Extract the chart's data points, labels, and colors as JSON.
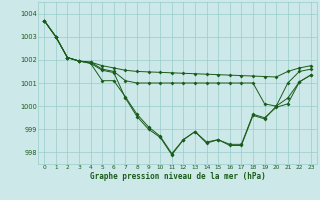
{
  "xlabel": "Graphe pression niveau de la mer (hPa)",
  "ylim": [
    997.5,
    1004.5
  ],
  "xlim": [
    -0.5,
    23.5
  ],
  "yticks": [
    998,
    999,
    1000,
    1001,
    1002,
    1003,
    1004
  ],
  "xticks": [
    0,
    1,
    2,
    3,
    4,
    5,
    6,
    7,
    8,
    9,
    10,
    11,
    12,
    13,
    14,
    15,
    16,
    17,
    18,
    19,
    20,
    21,
    22,
    23
  ],
  "background_color": "#cce8e8",
  "grid_color": "#99cccc",
  "line_color": "#1a5c1a",
  "line1": [
    1003.7,
    1003.0,
    1002.1,
    1001.95,
    1001.9,
    1001.75,
    1001.65,
    1001.55,
    1001.5,
    1001.48,
    1001.46,
    1001.44,
    1001.42,
    1001.4,
    1001.38,
    1001.36,
    1001.34,
    1001.32,
    1001.3,
    1001.28,
    1001.26,
    1001.5,
    1001.65,
    1001.75
  ],
  "line2": [
    1003.7,
    1003.0,
    1002.1,
    1001.95,
    1001.9,
    1001.6,
    1001.5,
    1001.1,
    1001.0,
    1001.0,
    1001.0,
    1001.0,
    1001.0,
    1001.0,
    1001.0,
    1001.0,
    1001.0,
    1001.0,
    1001.0,
    1000.1,
    1000.0,
    1001.0,
    1001.5,
    1001.6
  ],
  "line3": [
    1003.7,
    1003.0,
    1002.1,
    1001.95,
    1001.85,
    1001.1,
    1001.1,
    1000.4,
    999.65,
    999.1,
    998.7,
    997.95,
    998.55,
    998.9,
    998.45,
    998.55,
    998.35,
    998.35,
    999.65,
    999.5,
    999.95,
    1000.1,
    1001.05,
    1001.35
  ],
  "line4": [
    1003.7,
    1003.0,
    1002.1,
    1001.95,
    1001.85,
    1001.55,
    1001.45,
    1000.35,
    999.55,
    999.0,
    998.65,
    997.9,
    998.55,
    998.9,
    998.4,
    998.55,
    998.3,
    998.3,
    999.6,
    999.45,
    1000.0,
    1000.35,
    1001.05,
    1001.35
  ],
  "markersize": 2.0,
  "linewidth": 0.7
}
